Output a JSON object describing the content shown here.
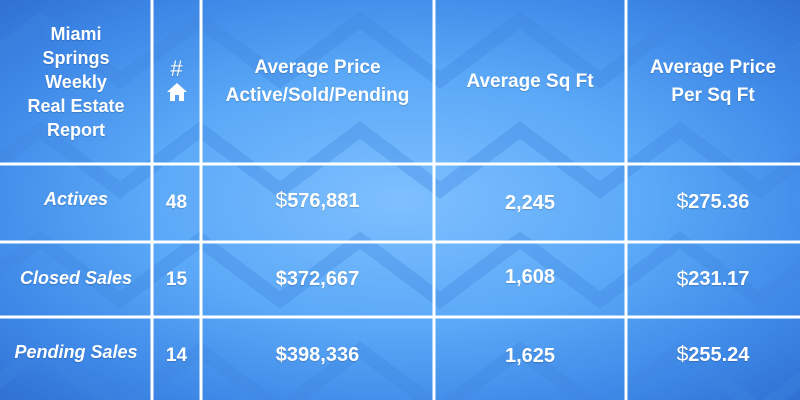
{
  "table": {
    "title_lines": [
      "Miami",
      "Springs",
      "Weekly",
      "Real Estate",
      "Report"
    ],
    "count_symbol": "#",
    "count_icon": "home-icon",
    "headers": {
      "avg_price_line1": "Average Price",
      "avg_price_line2": "Active/Sold/Pending",
      "avg_sqft": "Average Sq Ft",
      "avg_ppsf_line1": "Average Price",
      "avg_ppsf_line2": "Per Sq Ft"
    },
    "currency_symbol": "$",
    "rows": [
      {
        "label": "Actives",
        "count": "48",
        "avg_price": "576,881",
        "avg_sqft": "2,245",
        "avg_ppsf": "275.36"
      },
      {
        "label": "Closed Sales",
        "count": "15",
        "avg_price": "372,667",
        "avg_sqft": "1,608",
        "avg_ppsf": "231.17"
      },
      {
        "label": "Pending Sales",
        "count": "14",
        "avg_price": "398,336",
        "avg_sqft": "1,625",
        "avg_ppsf": "255.24"
      }
    ]
  },
  "colors": {
    "background": "#5aa8f7",
    "grid_line": "#ffffff",
    "text": "#ffffff"
  },
  "chart_data": {
    "type": "table",
    "columns": [
      "#",
      "Average Price Active/Sold/Pending",
      "Average Sq Ft",
      "Average Price Per Sq Ft"
    ],
    "rows": [
      {
        "category": "Actives",
        "count": 48,
        "avg_price": 576881,
        "avg_sqft": 2245,
        "avg_price_per_sqft": 275.36
      },
      {
        "category": "Closed Sales",
        "count": 15,
        "avg_price": 372667,
        "avg_sqft": 1608,
        "avg_price_per_sqft": 231.17
      },
      {
        "category": "Pending Sales",
        "count": 14,
        "avg_price": 398336,
        "avg_sqft": 1625,
        "avg_price_per_sqft": 255.24
      }
    ]
  }
}
